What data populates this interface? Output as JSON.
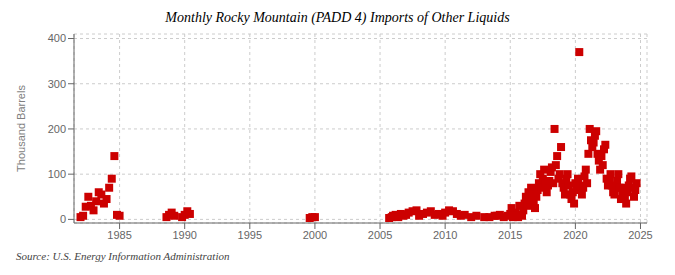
{
  "chart_data": {
    "type": "scatter",
    "title": "Monthly Rocky Mountain (PADD 4) Imports of Other Liquids",
    "y_label": "Thousand Barrels",
    "source": "Source: U.S. Energy Information Administration",
    "color": "#CC0000",
    "marker": "square",
    "grid": true,
    "xlim": [
      1981.5,
      2025.5
    ],
    "ylim": [
      -8,
      410
    ],
    "xticks": [
      1985,
      1990,
      1995,
      2000,
      2005,
      2010,
      2015,
      2020,
      2025
    ],
    "yticks": [
      0,
      100,
      200,
      300,
      400
    ],
    "x": [
      1982.0,
      1982.2,
      1982.4,
      1982.6,
      1982.8,
      1983.0,
      1983.2,
      1983.4,
      1983.6,
      1983.8,
      1984.0,
      1984.2,
      1984.4,
      1984.6,
      1984.8,
      1985.0,
      1988.6,
      1988.8,
      1989.0,
      1989.2,
      1989.8,
      1990.0,
      1990.2,
      1990.4,
      1999.6,
      1999.8,
      2000.0,
      2005.7,
      2005.9,
      2006.0,
      2006.2,
      2006.4,
      2006.6,
      2006.8,
      2007.0,
      2007.2,
      2007.5,
      2007.8,
      2008.0,
      2008.3,
      2008.6,
      2008.9,
      2009.2,
      2009.5,
      2009.8,
      2010.0,
      2010.3,
      2010.6,
      2010.9,
      2011.2,
      2011.5,
      2012.0,
      2012.4,
      2013.0,
      2013.4,
      2013.8,
      2014.0,
      2014.2,
      2014.5,
      2014.8,
      2015.0,
      2015.1,
      2015.2,
      2015.3,
      2015.4,
      2015.5,
      2015.6,
      2015.7,
      2015.8,
      2015.9,
      2016.0,
      2016.1,
      2016.2,
      2016.3,
      2016.4,
      2016.5,
      2016.6,
      2016.7,
      2016.8,
      2016.9,
      2017.0,
      2017.1,
      2017.2,
      2017.3,
      2017.4,
      2017.5,
      2017.6,
      2017.7,
      2017.8,
      2017.9,
      2018.0,
      2018.1,
      2018.2,
      2018.3,
      2018.4,
      2018.5,
      2018.6,
      2018.7,
      2018.8,
      2018.9,
      2019.0,
      2019.1,
      2019.2,
      2019.3,
      2019.4,
      2019.5,
      2019.6,
      2019.7,
      2019.8,
      2019.9,
      2020.0,
      2020.1,
      2020.2,
      2020.3,
      2020.4,
      2020.5,
      2020.6,
      2020.7,
      2020.8,
      2020.9,
      2021.0,
      2021.1,
      2021.2,
      2021.3,
      2021.4,
      2021.5,
      2021.6,
      2021.7,
      2021.8,
      2021.9,
      2022.0,
      2022.1,
      2022.2,
      2022.3,
      2022.4,
      2022.5,
      2022.6,
      2022.7,
      2022.8,
      2022.9,
      2023.0,
      2023.1,
      2023.2,
      2023.3,
      2023.4,
      2023.5,
      2023.6,
      2023.7,
      2023.8,
      2023.9,
      2024.0,
      2024.1,
      2024.2,
      2024.3,
      2024.4,
      2024.5,
      2024.6,
      2024.7
    ],
    "values": [
      5,
      8,
      28,
      50,
      30,
      20,
      40,
      60,
      55,
      35,
      45,
      70,
      90,
      140,
      10,
      8,
      5,
      10,
      15,
      8,
      5,
      10,
      18,
      12,
      3,
      5,
      5,
      3,
      5,
      8,
      10,
      5,
      12,
      8,
      10,
      15,
      18,
      20,
      8,
      12,
      15,
      18,
      10,
      12,
      8,
      15,
      20,
      18,
      12,
      8,
      10,
      5,
      8,
      5,
      5,
      8,
      8,
      10,
      5,
      8,
      12,
      25,
      5,
      8,
      15,
      8,
      5,
      30,
      10,
      8,
      20,
      35,
      50,
      30,
      60,
      45,
      70,
      55,
      40,
      25,
      50,
      65,
      80,
      100,
      70,
      90,
      110,
      80,
      60,
      75,
      85,
      105,
      115,
      80,
      200,
      120,
      140,
      90,
      100,
      160,
      80,
      70,
      55,
      90,
      100,
      75,
      55,
      45,
      60,
      35,
      80,
      65,
      90,
      370,
      75,
      55,
      70,
      95,
      110,
      80,
      145,
      200,
      175,
      160,
      170,
      185,
      195,
      145,
      130,
      110,
      140,
      120,
      155,
      165,
      90,
      75,
      85,
      100,
      75,
      60,
      55,
      70,
      85,
      100,
      70,
      45,
      55,
      70,
      50,
      35,
      60,
      75,
      90,
      95,
      70,
      50,
      65,
      80
    ]
  }
}
